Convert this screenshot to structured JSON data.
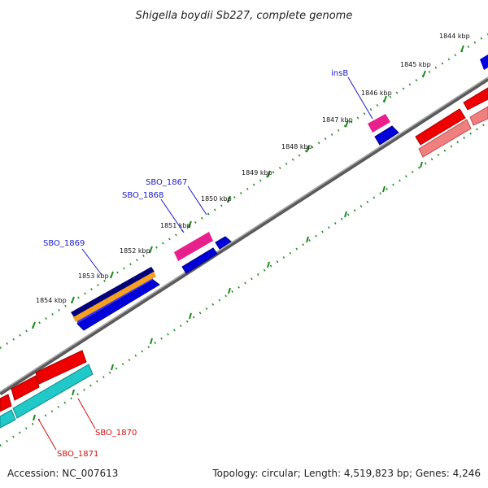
{
  "header": {
    "title": "Shigella boydii Sb227, complete genome"
  },
  "footer": {
    "accession": "Accession: NC_007613",
    "summary": "Topology: circular; Length: 4,519,823 bp; Genes: 4,246"
  },
  "ticks": {
    "labels": [
      "1844 kbp",
      "1845 kbp",
      "1846 kbp",
      "1847 kbp",
      "1848 kbp",
      "1849 kbp",
      "1850 kbp",
      "1851 kbp",
      "1852 kbp",
      "1853 kbp",
      "1854 kbp"
    ]
  },
  "genes": {
    "insB": "insB",
    "sbo1867": "SBO_1867",
    "sbo1868": "SBO_1868",
    "sbo1869": "SBO_1869",
    "sbo1870": "SBO_1870",
    "sbo1871": "SBO_1871"
  },
  "colors": {
    "backbone": "#808080",
    "forward_cds": "#0000ee",
    "pink_feature": "#e8208c",
    "navy_feature": "#00007a",
    "orange_feature": "#f5a020",
    "red_cds": "#ee0000",
    "salmon_feature": "#f08080",
    "cyan_feature": "#20c8c8",
    "tick_green": "#1a8a1a"
  }
}
